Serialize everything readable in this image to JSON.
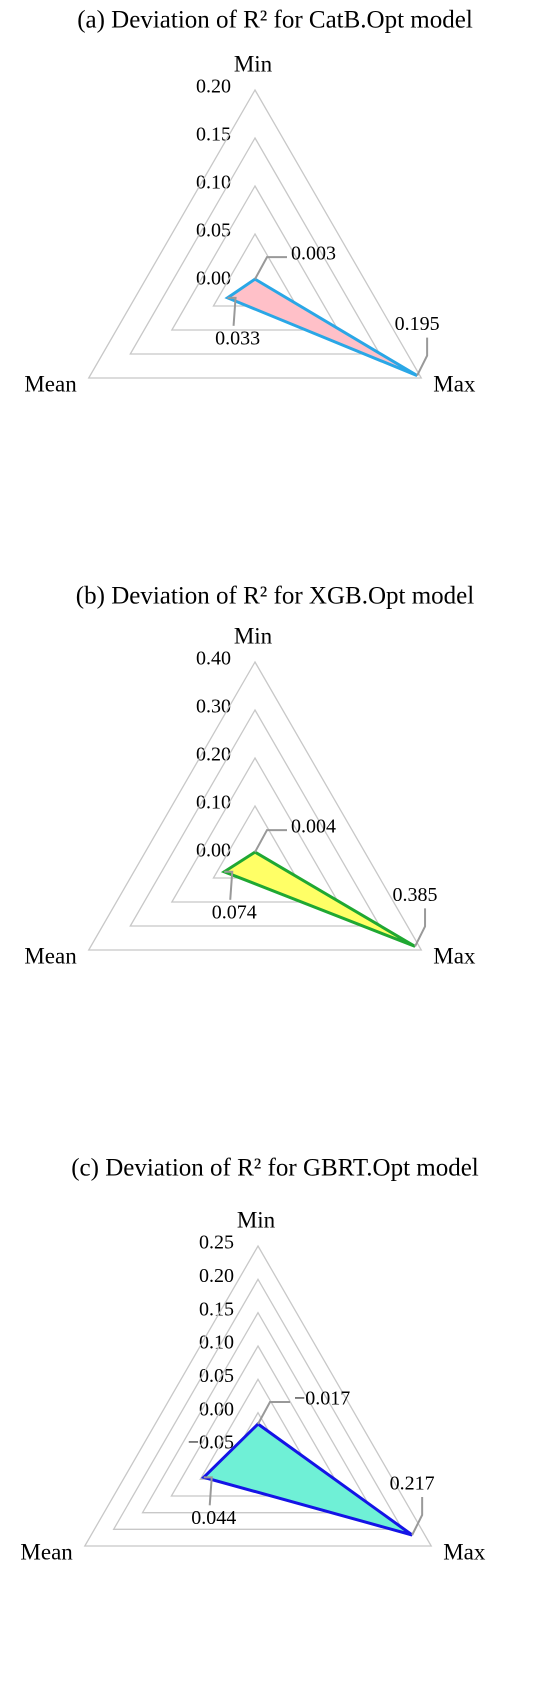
{
  "chart_data": [
    {
      "type": "radar",
      "title": "(a) Deviation of R² for CatB.Opt model",
      "categories": [
        "Min",
        "Max",
        "Mean"
      ],
      "values": [
        0.003,
        0.195,
        0.033
      ],
      "rlim": [
        0,
        0.2
      ],
      "rticks": [
        {
          "value": 0,
          "label": "0.00"
        },
        {
          "value": 0.05,
          "label": "0.05"
        },
        {
          "value": 0.1,
          "label": "0.10"
        },
        {
          "value": 0.15,
          "label": "0.15"
        },
        {
          "value": 0.2,
          "label": "0.20"
        }
      ],
      "fill": "#ffc0c8",
      "color": "#2aa7e6",
      "grid": true
    },
    {
      "type": "radar",
      "title": "(b) Deviation of R² for XGB.Opt model",
      "categories": [
        "Min",
        "Max",
        "Mean"
      ],
      "values": [
        0.004,
        0.385,
        0.074
      ],
      "rlim": [
        0,
        0.4
      ],
      "rticks": [
        {
          "value": 0,
          "label": "0.00"
        },
        {
          "value": 0.1,
          "label": "0.10"
        },
        {
          "value": 0.2,
          "label": "0.20"
        },
        {
          "value": 0.3,
          "label": "0.30"
        },
        {
          "value": 0.4,
          "label": "0.40"
        }
      ],
      "fill": "#ffff66",
      "color": "#1fa832",
      "grid": true
    },
    {
      "type": "radar",
      "title": "(c) Deviation of R²  for GBRT.Opt model",
      "categories": [
        "Min",
        "Max",
        "Mean"
      ],
      "values": [
        -0.017,
        0.217,
        0.044
      ],
      "value_labels": [
        "−0.017",
        "0.217",
        "0.044"
      ],
      "rlim": [
        -0.05,
        0.25
      ],
      "rticks": [
        {
          "value": -0.05,
          "label": "−0.05"
        },
        {
          "value": 0,
          "label": "0.00"
        },
        {
          "value": 0.05,
          "label": "0.05"
        },
        {
          "value": 0.1,
          "label": "0.10"
        },
        {
          "value": 0.15,
          "label": "0.15"
        },
        {
          "value": 0.2,
          "label": "0.20"
        },
        {
          "value": 0.25,
          "label": "0.25"
        }
      ],
      "fill": "#6ff0d6",
      "color": "#1414e6",
      "grid": true
    }
  ]
}
